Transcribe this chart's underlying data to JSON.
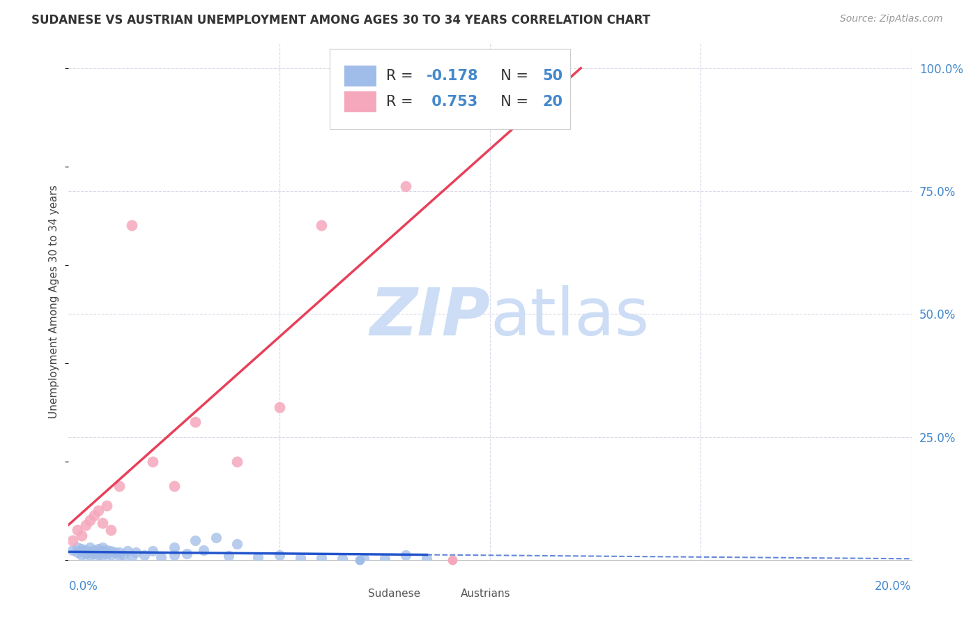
{
  "title": "SUDANESE VS AUSTRIAN UNEMPLOYMENT AMONG AGES 30 TO 34 YEARS CORRELATION CHART",
  "source": "Source: ZipAtlas.com",
  "ylabel": "Unemployment Among Ages 30 to 34 years",
  "xlim": [
    0.0,
    0.2
  ],
  "ylim": [
    0.0,
    1.05
  ],
  "yticks": [
    0.25,
    0.5,
    0.75,
    1.0
  ],
  "ytick_labels_right": [
    "25.0%",
    "50.0%",
    "75.0%",
    "100.0%"
  ],
  "sudanese_R": -0.178,
  "sudanese_N": 50,
  "austrians_R": 0.753,
  "austrians_N": 20,
  "sudanese_color": "#a0bce8",
  "austrians_color": "#f5a8bc",
  "sudanese_line_color": "#2255cc",
  "austrians_line_color": "#e8405a",
  "watermark_color": "#ccddf5",
  "background_color": "#ffffff",
  "right_axis_color": "#4488cc",
  "grid_color": "#d8d8e8",
  "sudanese_x": [
    0.001,
    0.002,
    0.002,
    0.003,
    0.003,
    0.003,
    0.004,
    0.004,
    0.005,
    0.005,
    0.005,
    0.006,
    0.006,
    0.007,
    0.007,
    0.007,
    0.008,
    0.008,
    0.008,
    0.009,
    0.009,
    0.01,
    0.01,
    0.011,
    0.012,
    0.012,
    0.013,
    0.014,
    0.015,
    0.016,
    0.018,
    0.02,
    0.022,
    0.025,
    0.025,
    0.028,
    0.03,
    0.032,
    0.035,
    0.038,
    0.04,
    0.045,
    0.05,
    0.055,
    0.06,
    0.065,
    0.07,
    0.075,
    0.08,
    0.085
  ],
  "sudanese_y": [
    0.02,
    0.015,
    0.025,
    0.01,
    0.018,
    0.022,
    0.012,
    0.02,
    0.008,
    0.015,
    0.025,
    0.012,
    0.02,
    0.01,
    0.015,
    0.022,
    0.008,
    0.018,
    0.025,
    0.012,
    0.02,
    0.01,
    0.018,
    0.015,
    0.008,
    0.015,
    0.01,
    0.018,
    0.005,
    0.015,
    0.01,
    0.018,
    0.005,
    0.025,
    0.01,
    0.012,
    0.04,
    0.02,
    0.045,
    0.008,
    0.032,
    0.005,
    0.01,
    0.004,
    0.004,
    0.003,
    0.002,
    0.003,
    0.01,
    0.002
  ],
  "austrians_x": [
    0.001,
    0.002,
    0.003,
    0.004,
    0.005,
    0.006,
    0.007,
    0.008,
    0.009,
    0.01,
    0.012,
    0.015,
    0.02,
    0.025,
    0.03,
    0.04,
    0.05,
    0.06,
    0.08,
    0.1
  ],
  "austrians_y": [
    0.04,
    0.06,
    0.05,
    0.07,
    0.08,
    0.09,
    0.1,
    0.075,
    0.11,
    0.06,
    0.15,
    0.68,
    0.2,
    0.15,
    0.28,
    0.2,
    0.31,
    0.68,
    0.76,
    1.0
  ],
  "legend_R1": "R = -0.178",
  "legend_N1": "N = 50",
  "legend_R2": "R =  0.753",
  "legend_N2": "N = 20"
}
